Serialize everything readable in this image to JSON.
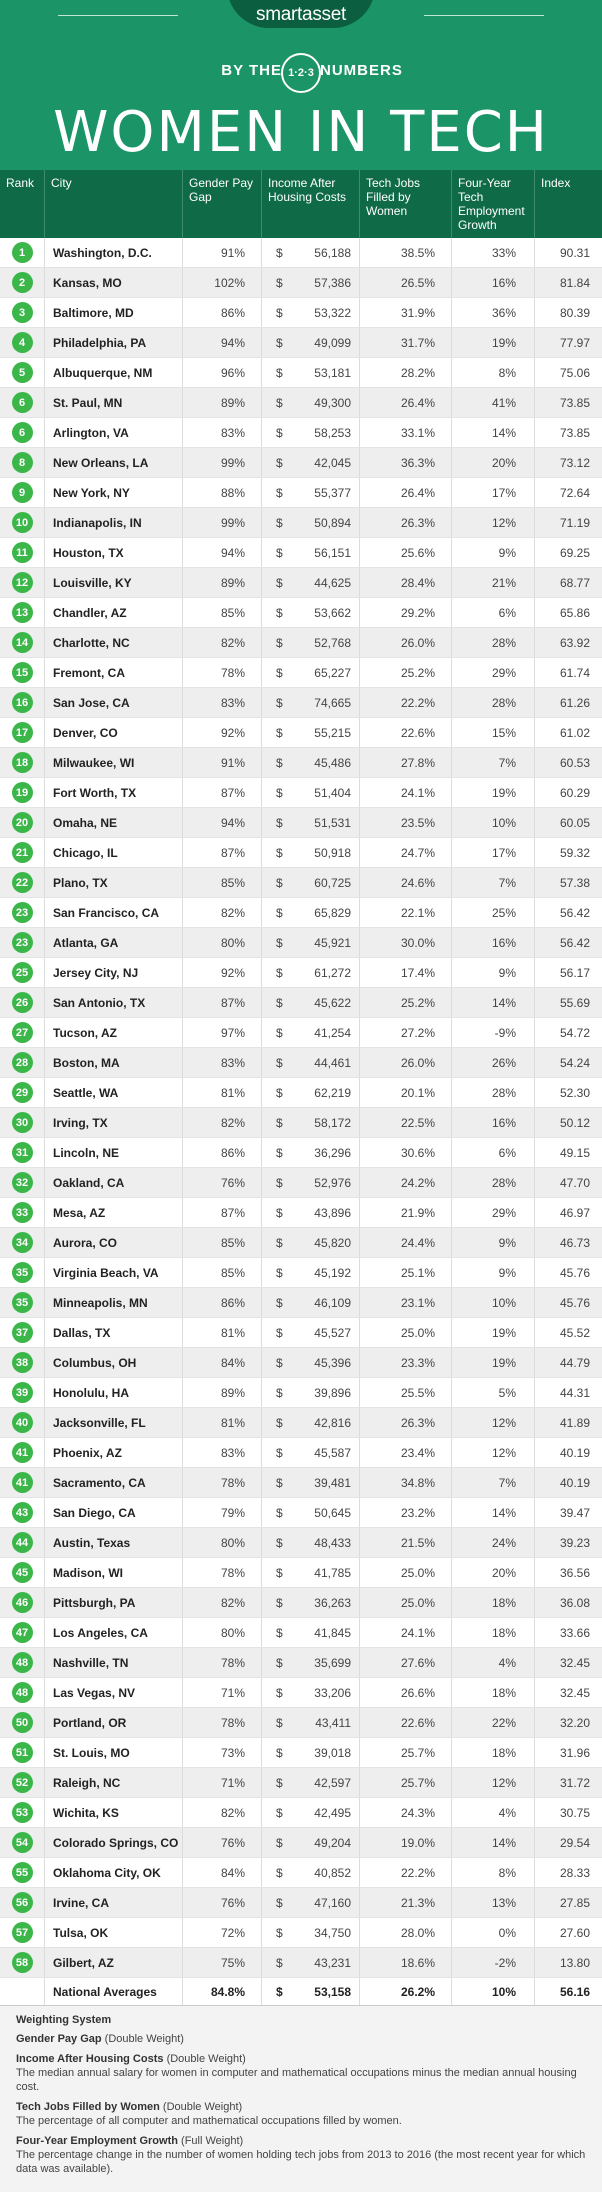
{
  "header": {
    "brand_bold": "smart",
    "brand_light": "asset",
    "by_the": "BY THE",
    "numbers_circle": "1·2·3",
    "numbers": "NUMBERS",
    "title": "WOMEN IN TECH",
    "background_color": "#1b9567",
    "accent_color": "#0f6a48"
  },
  "columns": [
    "Rank",
    "City",
    "Gender Pay Gap",
    "Income After Housing Costs",
    "Tech Jobs Filled by Women",
    "Four-Year Tech Employment Growth",
    "Index"
  ],
  "rows": [
    {
      "rank": "1",
      "city": "Washington, D.C.",
      "gap": "91%",
      "income": "56,188",
      "jobs": "38.5%",
      "growth": "33%",
      "index": "90.31"
    },
    {
      "rank": "2",
      "city": "Kansas, MO",
      "gap": "102%",
      "income": "57,386",
      "jobs": "26.5%",
      "growth": "16%",
      "index": "81.84"
    },
    {
      "rank": "3",
      "city": "Baltimore, MD",
      "gap": "86%",
      "income": "53,322",
      "jobs": "31.9%",
      "growth": "36%",
      "index": "80.39"
    },
    {
      "rank": "4",
      "city": "Philadelphia, PA",
      "gap": "94%",
      "income": "49,099",
      "jobs": "31.7%",
      "growth": "19%",
      "index": "77.97"
    },
    {
      "rank": "5",
      "city": "Albuquerque, NM",
      "gap": "96%",
      "income": "53,181",
      "jobs": "28.2%",
      "growth": "8%",
      "index": "75.06"
    },
    {
      "rank": "6",
      "city": "St. Paul, MN",
      "gap": "89%",
      "income": "49,300",
      "jobs": "26.4%",
      "growth": "41%",
      "index": "73.85"
    },
    {
      "rank": "6",
      "city": "Arlington, VA",
      "gap": "83%",
      "income": "58,253",
      "jobs": "33.1%",
      "growth": "14%",
      "index": "73.85"
    },
    {
      "rank": "8",
      "city": "New Orleans, LA",
      "gap": "99%",
      "income": "42,045",
      "jobs": "36.3%",
      "growth": "20%",
      "index": "73.12"
    },
    {
      "rank": "9",
      "city": "New York, NY",
      "gap": "88%",
      "income": "55,377",
      "jobs": "26.4%",
      "growth": "17%",
      "index": "72.64"
    },
    {
      "rank": "10",
      "city": "Indianapolis, IN",
      "gap": "99%",
      "income": "50,894",
      "jobs": "26.3%",
      "growth": "12%",
      "index": "71.19"
    },
    {
      "rank": "11",
      "city": "Houston, TX",
      "gap": "94%",
      "income": "56,151",
      "jobs": "25.6%",
      "growth": "9%",
      "index": "69.25"
    },
    {
      "rank": "12",
      "city": "Louisville, KY",
      "gap": "89%",
      "income": "44,625",
      "jobs": "28.4%",
      "growth": "21%",
      "index": "68.77"
    },
    {
      "rank": "13",
      "city": "Chandler, AZ",
      "gap": "85%",
      "income": "53,662",
      "jobs": "29.2%",
      "growth": "6%",
      "index": "65.86"
    },
    {
      "rank": "14",
      "city": "Charlotte, NC",
      "gap": "82%",
      "income": "52,768",
      "jobs": "26.0%",
      "growth": "28%",
      "index": "63.92"
    },
    {
      "rank": "15",
      "city": "Fremont, CA",
      "gap": "78%",
      "income": "65,227",
      "jobs": "25.2%",
      "growth": "29%",
      "index": "61.74"
    },
    {
      "rank": "16",
      "city": "San Jose, CA",
      "gap": "83%",
      "income": "74,665",
      "jobs": "22.2%",
      "growth": "28%",
      "index": "61.26"
    },
    {
      "rank": "17",
      "city": "Denver, CO",
      "gap": "92%",
      "income": "55,215",
      "jobs": "22.6%",
      "growth": "15%",
      "index": "61.02"
    },
    {
      "rank": "18",
      "city": "Milwaukee, WI",
      "gap": "91%",
      "income": "45,486",
      "jobs": "27.8%",
      "growth": "7%",
      "index": "60.53"
    },
    {
      "rank": "19",
      "city": "Fort Worth, TX",
      "gap": "87%",
      "income": "51,404",
      "jobs": "24.1%",
      "growth": "19%",
      "index": "60.29"
    },
    {
      "rank": "20",
      "city": "Omaha, NE",
      "gap": "94%",
      "income": "51,531",
      "jobs": "23.5%",
      "growth": "10%",
      "index": "60.05"
    },
    {
      "rank": "21",
      "city": "Chicago, IL",
      "gap": "87%",
      "income": "50,918",
      "jobs": "24.7%",
      "growth": "17%",
      "index": "59.32"
    },
    {
      "rank": "22",
      "city": "Plano, TX",
      "gap": "85%",
      "income": "60,725",
      "jobs": "24.6%",
      "growth": "7%",
      "index": "57.38"
    },
    {
      "rank": "23",
      "city": "San Francisco, CA",
      "gap": "82%",
      "income": "65,829",
      "jobs": "22.1%",
      "growth": "25%",
      "index": "56.42"
    },
    {
      "rank": "23",
      "city": "Atlanta, GA",
      "gap": "80%",
      "income": "45,921",
      "jobs": "30.0%",
      "growth": "16%",
      "index": "56.42"
    },
    {
      "rank": "25",
      "city": "Jersey City, NJ",
      "gap": "92%",
      "income": "61,272",
      "jobs": "17.4%",
      "growth": "9%",
      "index": "56.17"
    },
    {
      "rank": "26",
      "city": "San Antonio, TX",
      "gap": "87%",
      "income": "45,622",
      "jobs": "25.2%",
      "growth": "14%",
      "index": "55.69"
    },
    {
      "rank": "27",
      "city": "Tucson, AZ",
      "gap": "97%",
      "income": "41,254",
      "jobs": "27.2%",
      "growth": "-9%",
      "index": "54.72"
    },
    {
      "rank": "28",
      "city": "Boston, MA",
      "gap": "83%",
      "income": "44,461",
      "jobs": "26.0%",
      "growth": "26%",
      "index": "54.24"
    },
    {
      "rank": "29",
      "city": "Seattle, WA",
      "gap": "81%",
      "income": "62,219",
      "jobs": "20.1%",
      "growth": "28%",
      "index": "52.30"
    },
    {
      "rank": "30",
      "city": "Irving, TX",
      "gap": "82%",
      "income": "58,172",
      "jobs": "22.5%",
      "growth": "16%",
      "index": "50.12"
    },
    {
      "rank": "31",
      "city": "Lincoln, NE",
      "gap": "86%",
      "income": "36,296",
      "jobs": "30.6%",
      "growth": "6%",
      "index": "49.15"
    },
    {
      "rank": "32",
      "city": "Oakland, CA",
      "gap": "76%",
      "income": "52,976",
      "jobs": "24.2%",
      "growth": "28%",
      "index": "47.70"
    },
    {
      "rank": "33",
      "city": "Mesa, AZ",
      "gap": "87%",
      "income": "43,896",
      "jobs": "21.9%",
      "growth": "29%",
      "index": "46.97"
    },
    {
      "rank": "34",
      "city": "Aurora, CO",
      "gap": "85%",
      "income": "45,820",
      "jobs": "24.4%",
      "growth": "9%",
      "index": "46.73"
    },
    {
      "rank": "35",
      "city": "Virginia Beach, VA",
      "gap": "85%",
      "income": "45,192",
      "jobs": "25.1%",
      "growth": "9%",
      "index": "45.76"
    },
    {
      "rank": "35",
      "city": "Minneapolis, MN",
      "gap": "86%",
      "income": "46,109",
      "jobs": "23.1%",
      "growth": "10%",
      "index": "45.76"
    },
    {
      "rank": "37",
      "city": "Dallas, TX",
      "gap": "81%",
      "income": "45,527",
      "jobs": "25.0%",
      "growth": "19%",
      "index": "45.52"
    },
    {
      "rank": "38",
      "city": "Columbus, OH",
      "gap": "84%",
      "income": "45,396",
      "jobs": "23.3%",
      "growth": "19%",
      "index": "44.79"
    },
    {
      "rank": "39",
      "city": "Honolulu, HA",
      "gap": "89%",
      "income": "39,896",
      "jobs": "25.5%",
      "growth": "5%",
      "index": "44.31"
    },
    {
      "rank": "40",
      "city": "Jacksonville, FL",
      "gap": "81%",
      "income": "42,816",
      "jobs": "26.3%",
      "growth": "12%",
      "index": "41.89"
    },
    {
      "rank": "41",
      "city": "Phoenix, AZ",
      "gap": "83%",
      "income": "45,587",
      "jobs": "23.4%",
      "growth": "12%",
      "index": "40.19"
    },
    {
      "rank": "41",
      "city": "Sacramento, CA",
      "gap": "78%",
      "income": "39,481",
      "jobs": "34.8%",
      "growth": "7%",
      "index": "40.19"
    },
    {
      "rank": "43",
      "city": "San Diego, CA",
      "gap": "79%",
      "income": "50,645",
      "jobs": "23.2%",
      "growth": "14%",
      "index": "39.47"
    },
    {
      "rank": "44",
      "city": "Austin, Texas",
      "gap": "80%",
      "income": "48,433",
      "jobs": "21.5%",
      "growth": "24%",
      "index": "39.23"
    },
    {
      "rank": "45",
      "city": "Madison, WI",
      "gap": "78%",
      "income": "41,785",
      "jobs": "25.0%",
      "growth": "20%",
      "index": "36.56"
    },
    {
      "rank": "46",
      "city": "Pittsburgh, PA",
      "gap": "82%",
      "income": "36,263",
      "jobs": "25.0%",
      "growth": "18%",
      "index": "36.08"
    },
    {
      "rank": "47",
      "city": "Los Angeles, CA",
      "gap": "80%",
      "income": "41,845",
      "jobs": "24.1%",
      "growth": "18%",
      "index": "33.66"
    },
    {
      "rank": "48",
      "city": "Nashville, TN",
      "gap": "78%",
      "income": "35,699",
      "jobs": "27.6%",
      "growth": "4%",
      "index": "32.45"
    },
    {
      "rank": "48",
      "city": "Las Vegas, NV",
      "gap": "71%",
      "income": "33,206",
      "jobs": "26.6%",
      "growth": "18%",
      "index": "32.45"
    },
    {
      "rank": "50",
      "city": "Portland, OR",
      "gap": "78%",
      "income": "43,411",
      "jobs": "22.6%",
      "growth": "22%",
      "index": "32.20"
    },
    {
      "rank": "51",
      "city": "St. Louis, MO",
      "gap": "73%",
      "income": "39,018",
      "jobs": "25.7%",
      "growth": "18%",
      "index": "31.96"
    },
    {
      "rank": "52",
      "city": "Raleigh, NC",
      "gap": "71%",
      "income": "42,597",
      "jobs": "25.7%",
      "growth": "12%",
      "index": "31.72"
    },
    {
      "rank": "53",
      "city": "Wichita, KS",
      "gap": "82%",
      "income": "42,495",
      "jobs": "24.3%",
      "growth": "4%",
      "index": "30.75"
    },
    {
      "rank": "54",
      "city": "Colorado Springs, CO",
      "gap": "76%",
      "income": "49,204",
      "jobs": "19.0%",
      "growth": "14%",
      "index": "29.54"
    },
    {
      "rank": "55",
      "city": "Oklahoma City, OK",
      "gap": "84%",
      "income": "40,852",
      "jobs": "22.2%",
      "growth": "8%",
      "index": "28.33"
    },
    {
      "rank": "56",
      "city": "Irvine, CA",
      "gap": "76%",
      "income": "47,160",
      "jobs": "21.3%",
      "growth": "13%",
      "index": "27.85"
    },
    {
      "rank": "57",
      "city": "Tulsa, OK",
      "gap": "72%",
      "income": "34,750",
      "jobs": "28.0%",
      "growth": "0%",
      "index": "27.60"
    },
    {
      "rank": "58",
      "city": "Gilbert, AZ",
      "gap": "75%",
      "income": "43,231",
      "jobs": "18.6%",
      "growth": "-2%",
      "index": "13.80"
    }
  ],
  "averages": {
    "label": "National Averages",
    "gap": "84.8%",
    "income": "53,158",
    "jobs": "26.2%",
    "growth": "10%",
    "index": "56.16"
  },
  "currency_symbol": "$",
  "weighting": {
    "title": "Weighting System",
    "items": [
      {
        "name": "Gender Pay Gap",
        "weight": "(Double Weight)",
        "description": ""
      },
      {
        "name": "Income After Housing Costs",
        "weight": "(Double Weight)",
        "description": "The median annual salary for women in computer and mathematical occupations minus the median annual housing cost."
      },
      {
        "name": "Tech Jobs Filled by Women",
        "weight": "(Double Weight)",
        "description": "The percentage of all computer and mathematical occupations filled by women."
      },
      {
        "name": "Four-Year Employment Growth",
        "weight": "(Full Weight)",
        "description": "The percentage change in the number of women holding tech jobs from 2013 to 2016 (the most recent year for which data was available)."
      }
    ]
  },
  "colors": {
    "rank_badge": "#3bb649",
    "table_header": "#0f6a48",
    "row_alt": "#eeeeee"
  }
}
